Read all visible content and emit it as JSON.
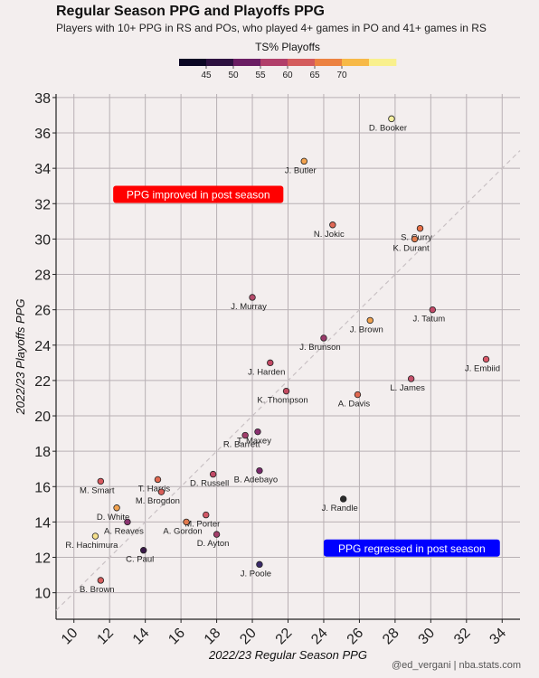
{
  "header": {
    "title": "Regular Season PPG and Playoffs PPG",
    "subtitle": "Players with 10+ PPG in RS and POs, who played 4+ games in PO and 41+ games in RS"
  },
  "credit": "@ed_vergani | nba.stats.com",
  "colorbar": {
    "label": "TS% Playoffs",
    "ticks": [
      "45",
      "50",
      "55",
      "60",
      "65",
      "70"
    ],
    "colors": [
      "#0b0724",
      "#2d1140",
      "#6a1d63",
      "#b13f6a",
      "#d45c5d",
      "#ec8241",
      "#f7b947",
      "#f9f08d"
    ]
  },
  "chart_data": {
    "type": "scatter",
    "xlabel": "2022/23 Regular Season PPG",
    "ylabel": "2022/23 Playoffs PPG",
    "xlim": [
      9,
      35
    ],
    "ylim": [
      8.5,
      38.2
    ],
    "xticks": [
      10,
      12,
      14,
      16,
      18,
      20,
      22,
      24,
      26,
      28,
      30,
      32,
      34
    ],
    "yticks": [
      10,
      12,
      14,
      16,
      18,
      20,
      22,
      24,
      26,
      28,
      30,
      32,
      34,
      36,
      38
    ],
    "grid": true,
    "reference_line": "y = x (dashed)",
    "annotations": [
      {
        "text": "PPG improved in post season",
        "x": 12.2,
        "y": 32.5,
        "color": "#ff0000"
      },
      {
        "text": "PPG regressed in post season",
        "x": 24,
        "y": 12.5,
        "color": "#0000ff"
      }
    ],
    "points": [
      {
        "name": "D. Booker",
        "x": 27.8,
        "y": 36.8,
        "color": "#f5f0a0"
      },
      {
        "name": "J. Butler",
        "x": 22.9,
        "y": 34.4,
        "color": "#f2a24f"
      },
      {
        "name": "S. Curry",
        "x": 29.4,
        "y": 30.6,
        "color": "#e87048"
      },
      {
        "name": "N. Jokic",
        "x": 24.5,
        "y": 30.8,
        "color": "#e06856"
      },
      {
        "name": "K. Durant",
        "x": 29.1,
        "y": 30.0,
        "color": "#e07d4e"
      },
      {
        "name": "J. Murray",
        "x": 20.0,
        "y": 26.7,
        "color": "#b44a6a"
      },
      {
        "name": "J. Tatum",
        "x": 30.1,
        "y": 26.0,
        "color": "#c24a68"
      },
      {
        "name": "J. Brown",
        "x": 26.6,
        "y": 25.4,
        "color": "#f0a24f"
      },
      {
        "name": "J. Brunson",
        "x": 24.0,
        "y": 24.4,
        "color": "#9a3a6a"
      },
      {
        "name": "J. Embiid",
        "x": 33.1,
        "y": 23.2,
        "color": "#d85868"
      },
      {
        "name": "J. Harden",
        "x": 21.0,
        "y": 23.0,
        "color": "#c24864"
      },
      {
        "name": "L. James",
        "x": 28.9,
        "y": 22.1,
        "color": "#c4506a"
      },
      {
        "name": "K. Thompson",
        "x": 21.9,
        "y": 21.4,
        "color": "#c24a60"
      },
      {
        "name": "A. Davis",
        "x": 25.9,
        "y": 21.2,
        "color": "#e06850"
      },
      {
        "name": "T. Maxey",
        "x": 20.3,
        "y": 19.1,
        "color": "#8a3070"
      },
      {
        "name": "R. Barrett",
        "x": 19.6,
        "y": 18.9,
        "color": "#a23e6c"
      },
      {
        "name": "B. Adebayo",
        "x": 20.4,
        "y": 16.9,
        "color": "#7a2a6c"
      },
      {
        "name": "D. Russell",
        "x": 17.8,
        "y": 16.7,
        "color": "#c24a66"
      },
      {
        "name": "T. Harris",
        "x": 14.7,
        "y": 16.4,
        "color": "#e06850"
      },
      {
        "name": "M. Smart",
        "x": 11.5,
        "y": 16.3,
        "color": "#d8585e"
      },
      {
        "name": "M. Brogdon",
        "x": 14.9,
        "y": 15.7,
        "color": "#d85e58"
      },
      {
        "name": "J. Randle",
        "x": 25.1,
        "y": 15.3,
        "color": "#2a2a2a"
      },
      {
        "name": "D. White",
        "x": 12.4,
        "y": 14.8,
        "color": "#f2a24f"
      },
      {
        "name": "M. Porter",
        "x": 17.4,
        "y": 14.4,
        "color": "#d25866"
      },
      {
        "name": "A. Reaves",
        "x": 13.0,
        "y": 14.0,
        "color": "#8a3470"
      },
      {
        "name": "A. Gordon",
        "x": 16.3,
        "y": 14.0,
        "color": "#e0784c"
      },
      {
        "name": "D. Ayton",
        "x": 18.0,
        "y": 13.3,
        "color": "#a43e6a"
      },
      {
        "name": "R. Hachimura",
        "x": 11.2,
        "y": 13.2,
        "color": "#f6e08c"
      },
      {
        "name": "C. Paul",
        "x": 13.9,
        "y": 12.4,
        "color": "#3a1a48"
      },
      {
        "name": "J. Poole",
        "x": 20.4,
        "y": 11.6,
        "color": "#3a2a6a"
      },
      {
        "name": "B. Brown",
        "x": 11.5,
        "y": 10.7,
        "color": "#d85e5e"
      }
    ]
  }
}
